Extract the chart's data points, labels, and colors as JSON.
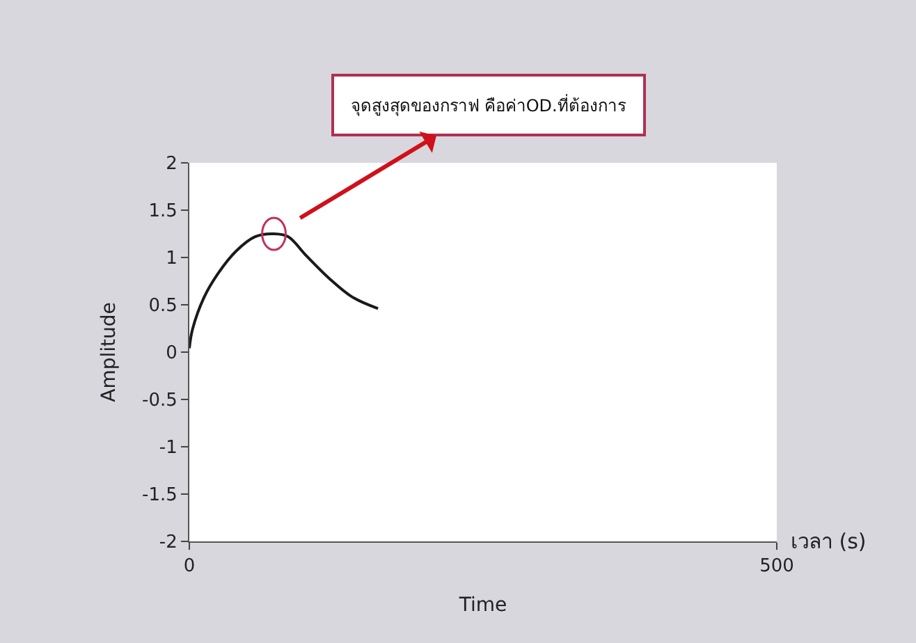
{
  "chart_data": {
    "type": "line",
    "xlabel": "Time",
    "ylabel": "Amplitude",
    "x": [
      0,
      2.7,
      12.6,
      24.4,
      40,
      56,
      72,
      84,
      99.5,
      119,
      139,
      160.6
    ],
    "series": [
      {
        "color": "#1a1a1a",
        "values": [
          0.04,
          0.24,
          0.58,
          0.83,
          1.07,
          1.22,
          1.25,
          1.22,
          1.02,
          0.78,
          0.58,
          0.46
        ]
      }
    ],
    "xlim": [
      0,
      500
    ],
    "xticks": [
      0,
      500
    ],
    "ylim": [
      -2,
      2
    ],
    "yticks": [
      -2,
      -1.5,
      -1,
      -0.5,
      0,
      0.5,
      1,
      1.5,
      2
    ],
    "annotations": [
      {
        "text": "จุดสูงสุดของกราฟ คือค่าOD.ที่ต้องการ",
        "x": 72,
        "y": 1.25
      },
      "เวลา (s)"
    ],
    "legend": false,
    "marker": "none",
    "line_style": "solid"
  }
}
